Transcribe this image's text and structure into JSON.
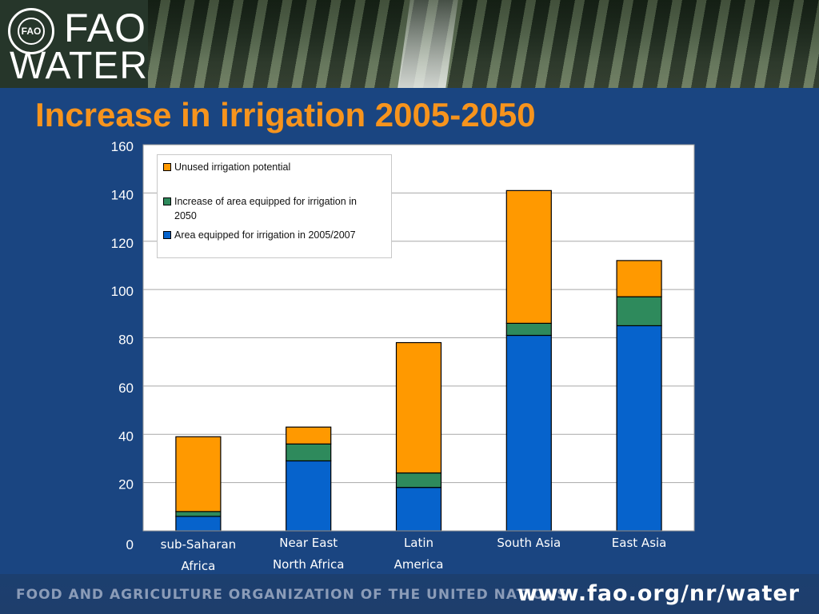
{
  "header": {
    "logo_fao": "FAO",
    "logo_water": "WATER",
    "emblem_text": "FAO"
  },
  "title": "Increase in irrigation 2005-2050",
  "chart_data": {
    "type": "bar",
    "stacked": true,
    "title": "",
    "xlabel": "",
    "ylabel": "",
    "ylim": [
      0,
      160
    ],
    "yticks": [
      0,
      20,
      40,
      60,
      80,
      100,
      120,
      140,
      160
    ],
    "grid": true,
    "legend_position": "top-left",
    "categories": [
      [
        "sub-Saharan",
        "Africa"
      ],
      [
        "Near East",
        "North Africa"
      ],
      [
        "Latin",
        "America"
      ],
      [
        "South Asia"
      ],
      [
        "East Asia"
      ]
    ],
    "series": [
      {
        "name": "Area equipped for irrigation in 2005/2007",
        "color": "#0663cc",
        "values": [
          6,
          29,
          18,
          81,
          85
        ]
      },
      {
        "name": "Increase of area equipped for irrigation in 2050",
        "color": "#2e8a5c",
        "values": [
          2,
          7,
          6,
          5,
          12
        ]
      },
      {
        "name": "Unused irrigation potential",
        "color": "#ff9900",
        "values": [
          31,
          7,
          54,
          55,
          15
        ]
      }
    ]
  },
  "legend": {
    "items": [
      {
        "label": "Unused irrigation potential",
        "color": "#ff9900"
      },
      {
        "label": "Increase of area equipped for irrigation in 2050",
        "color": "#2e8a5c"
      },
      {
        "label": "Area equipped for irrigation in 2005/2007",
        "color": "#0663cc"
      }
    ]
  },
  "footer": {
    "org": "FOOD AND AGRICULTURE ORGANIZATION OF THE UNITED NATIONS",
    "url": "www.fao.org/nr/water"
  },
  "colors": {
    "background": "#1a4581",
    "title": "#f7941d",
    "plot_background": "#ffffff"
  }
}
